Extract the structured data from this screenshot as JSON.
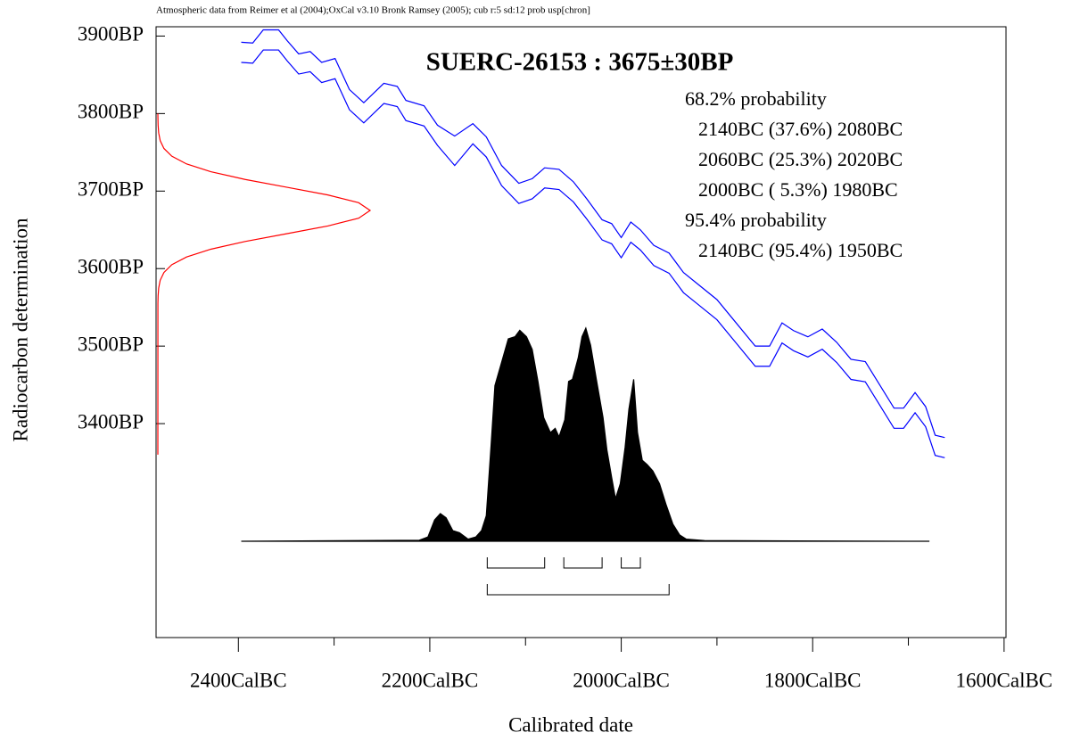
{
  "chart_data": {
    "type": "calibration",
    "subtitle": "Atmospheric data from Reimer et al (2004);OxCal v3.10 Bronk Ramsey (2005); cub r:5 sd:12 prob usp[chron]",
    "title": "SUERC-26153 : 3675±30BP",
    "x_label": "Calibrated date",
    "y_label": "Radiocarbon determination",
    "xlim": [
      2486,
      1598
    ],
    "ylim": [
      3124,
      3912
    ],
    "xticks": [
      {
        "value": 2400,
        "label": "2400CalBC"
      },
      {
        "value": 2200,
        "label": "2200CalBC"
      },
      {
        "value": 2000,
        "label": "2000CalBC"
      },
      {
        "value": 1800,
        "label": "1800CalBC"
      },
      {
        "value": 1600,
        "label": "1600CalBC"
      }
    ],
    "x_minor_ticks": [
      2300,
      2100,
      1900,
      1700
    ],
    "yticks": [
      {
        "value": 3900,
        "label": "3900BP"
      },
      {
        "value": 3800,
        "label": "3800BP"
      },
      {
        "value": 3700,
        "label": "3700BP"
      },
      {
        "value": 3600,
        "label": "3600BP"
      },
      {
        "value": 3500,
        "label": "3500BP"
      },
      {
        "value": 3400,
        "label": "3400BP"
      }
    ],
    "calibration_curve": {
      "x": [
        2397,
        2385,
        2374,
        2358,
        2349,
        2337,
        2325,
        2313,
        2299,
        2284,
        2269,
        2248,
        2234,
        2225,
        2206,
        2192,
        2174,
        2155,
        2141,
        2125,
        2107,
        2093,
        2080,
        2065,
        2050,
        2036,
        2020,
        2010,
        2000,
        1990,
        1980,
        1966,
        1950,
        1935,
        1920,
        1900,
        1880,
        1860,
        1845,
        1832,
        1820,
        1805,
        1790,
        1775,
        1760,
        1745,
        1730,
        1715,
        1705,
        1693,
        1682,
        1672,
        1662
      ],
      "series": [
        {
          "color": "#0000ff",
          "values": [
            3892,
            3891,
            3908,
            3908,
            3894,
            3877,
            3880,
            3866,
            3871,
            3831,
            3814,
            3839,
            3835,
            3817,
            3810,
            3785,
            3771,
            3787,
            3770,
            3733,
            3710,
            3716,
            3730,
            3728,
            3712,
            3690,
            3663,
            3658,
            3640,
            3660,
            3650,
            3630,
            3620,
            3595,
            3580,
            3560,
            3530,
            3500,
            3500,
            3530,
            3520,
            3512,
            3522,
            3505,
            3483,
            3480,
            3450,
            3420,
            3420,
            3440,
            3422,
            3385,
            3382
          ]
        },
        {
          "color": "#0000ff",
          "values": [
            3866,
            3865,
            3882,
            3882,
            3868,
            3851,
            3854,
            3840,
            3845,
            3805,
            3788,
            3813,
            3809,
            3791,
            3784,
            3759,
            3733,
            3761,
            3744,
            3707,
            3684,
            3690,
            3704,
            3702,
            3686,
            3664,
            3637,
            3632,
            3614,
            3634,
            3624,
            3604,
            3594,
            3569,
            3554,
            3534,
            3504,
            3474,
            3474,
            3504,
            3494,
            3486,
            3496,
            3479,
            3457,
            3454,
            3424,
            3394,
            3394,
            3414,
            3396,
            3359,
            3356
          ]
        }
      ]
    },
    "radiocarbon": {
      "color": "#ff0000",
      "y": [
        3360,
        3555,
        3565,
        3575,
        3585,
        3595,
        3605,
        3615,
        3625,
        3635,
        3645,
        3655,
        3665,
        3675,
        3685,
        3695,
        3705,
        3715,
        3725,
        3735,
        3745,
        3755,
        3765,
        3775,
        3785,
        3795,
        3800
      ],
      "values": [
        0,
        0.0003,
        0.0012,
        0.0039,
        0.0111,
        0.0286,
        0.0657,
        0.1353,
        0.2494,
        0.4111,
        0.6065,
        0.8007,
        0.946,
        1,
        0.946,
        0.8007,
        0.6065,
        0.4111,
        0.2494,
        0.1353,
        0.0657,
        0.0286,
        0.0111,
        0.0039,
        0.0012,
        0.0003,
        0
      ]
    },
    "posterior": {
      "color": "#000000",
      "x": [
        2397,
        2211,
        2202,
        2195,
        2189,
        2183,
        2176,
        2169,
        2160,
        2152,
        2146,
        2141,
        2136,
        2132,
        2125,
        2118,
        2111,
        2106,
        2099,
        2093,
        2087,
        2081,
        2074,
        2069,
        2065,
        2059,
        2055,
        2051,
        2045,
        2041,
        2037,
        2032,
        2026,
        2019,
        2015,
        2010,
        2006,
        2001,
        1996,
        1992,
        1987,
        1983,
        1978,
        1973,
        1967,
        1960,
        1953,
        1946,
        1939,
        1932,
        1913,
        1678
      ],
      "values": [
        0,
        0.005,
        0.02,
        0.1,
        0.13,
        0.11,
        0.05,
        0.04,
        0.01,
        0.02,
        0.05,
        0.12,
        0.45,
        0.73,
        0.84,
        0.95,
        0.96,
        0.99,
        0.96,
        0.9,
        0.75,
        0.58,
        0.51,
        0.53,
        0.49,
        0.57,
        0.75,
        0.76,
        0.86,
        0.96,
        1.0,
        0.92,
        0.76,
        0.58,
        0.43,
        0.3,
        0.2,
        0.27,
        0.44,
        0.62,
        0.76,
        0.51,
        0.38,
        0.36,
        0.33,
        0.27,
        0.17,
        0.08,
        0.03,
        0.01,
        0.003,
        0
      ]
    },
    "probability_groups": [
      {
        "label": "68.2% probability",
        "ranges": [
          {
            "from": 2140,
            "to": 2080,
            "label": "2140BC (37.6%) 2080BC"
          },
          {
            "from": 2060,
            "to": 2020,
            "label": "2060BC (25.3%) 2020BC"
          },
          {
            "from": 2000,
            "to": 1980,
            "label": "2000BC ( 5.3%) 1980BC"
          }
        ]
      },
      {
        "label": "95.4% probability",
        "ranges": [
          {
            "from": 2140,
            "to": 1950,
            "label": "2140BC (95.4%) 1950BC"
          }
        ]
      }
    ]
  }
}
